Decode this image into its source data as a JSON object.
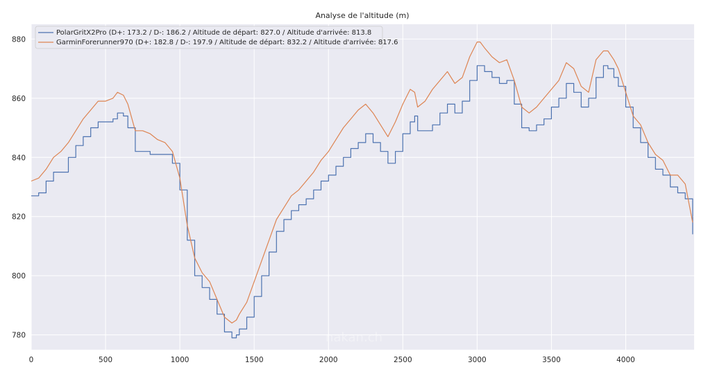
{
  "chart_data": {
    "type": "line",
    "title": "Analyse de l'altitude (m)",
    "xlabel": "",
    "ylabel": "",
    "xlim": [
      0,
      4460
    ],
    "ylim": [
      775,
      885
    ],
    "xticks": [
      0,
      500,
      1000,
      1500,
      2000,
      2500,
      3000,
      3500,
      4000
    ],
    "yticks": [
      780,
      800,
      820,
      840,
      860,
      880
    ],
    "grid": true,
    "legend_position": "top-left",
    "background": "#eaeaf2",
    "watermark": "nakan.ch",
    "series": [
      {
        "name": "PolarGritX2Pro (D+: 173.2 / D-: 186.2 / Altitude de départ: 827.0 / Altitude d'arrivée: 813.8",
        "color": "#4c72b0",
        "step": true,
        "x": [
          0,
          50,
          100,
          150,
          200,
          250,
          300,
          350,
          400,
          450,
          500,
          550,
          580,
          620,
          650,
          700,
          750,
          800,
          850,
          900,
          950,
          1000,
          1050,
          1100,
          1150,
          1200,
          1250,
          1300,
          1350,
          1380,
          1400,
          1450,
          1500,
          1550,
          1600,
          1650,
          1700,
          1750,
          1800,
          1850,
          1900,
          1950,
          2000,
          2050,
          2100,
          2150,
          2200,
          2250,
          2300,
          2350,
          2400,
          2450,
          2500,
          2550,
          2580,
          2600,
          2650,
          2700,
          2750,
          2800,
          2850,
          2900,
          2950,
          3000,
          3020,
          3050,
          3100,
          3150,
          3200,
          3250,
          3300,
          3350,
          3400,
          3450,
          3500,
          3550,
          3600,
          3650,
          3700,
          3750,
          3800,
          3850,
          3880,
          3920,
          3950,
          4000,
          4050,
          4100,
          4150,
          4200,
          4250,
          4300,
          4350,
          4400,
          4450
        ],
        "values": [
          827,
          828,
          832,
          835,
          835,
          840,
          844,
          847,
          850,
          852,
          852,
          853,
          855,
          854,
          850,
          842,
          842,
          841,
          841,
          841,
          838,
          829,
          812,
          800,
          796,
          792,
          787,
          781,
          779,
          780,
          782,
          786,
          793,
          800,
          808,
          815,
          819,
          822,
          824,
          826,
          829,
          832,
          834,
          837,
          840,
          843,
          845,
          848,
          845,
          842,
          838,
          842,
          848,
          852,
          854,
          849,
          849,
          851,
          855,
          858,
          855,
          859,
          866,
          871,
          871,
          869,
          867,
          865,
          866,
          858,
          850,
          849,
          851,
          853,
          857,
          860,
          865,
          862,
          857,
          860,
          867,
          871,
          870,
          867,
          864,
          857,
          850,
          845,
          840,
          836,
          834,
          830,
          828,
          826,
          814
        ]
      },
      {
        "name": "GarminForerunner970 (D+: 182.8 / D-: 197.9 / Altitude de départ: 832.2 / Altitude d'arrivée: 817.6",
        "color": "#dd8452",
        "step": false,
        "x": [
          0,
          50,
          100,
          150,
          200,
          250,
          300,
          350,
          400,
          450,
          500,
          550,
          580,
          620,
          650,
          700,
          750,
          800,
          850,
          900,
          950,
          1000,
          1050,
          1100,
          1150,
          1200,
          1250,
          1300,
          1350,
          1380,
          1400,
          1450,
          1500,
          1550,
          1600,
          1650,
          1700,
          1750,
          1800,
          1850,
          1900,
          1950,
          2000,
          2050,
          2100,
          2150,
          2200,
          2250,
          2300,
          2350,
          2400,
          2450,
          2500,
          2550,
          2580,
          2600,
          2650,
          2700,
          2750,
          2800,
          2850,
          2900,
          2950,
          3000,
          3020,
          3050,
          3100,
          3150,
          3200,
          3250,
          3300,
          3350,
          3400,
          3450,
          3500,
          3550,
          3600,
          3650,
          3700,
          3750,
          3800,
          3850,
          3880,
          3920,
          3950,
          4000,
          4050,
          4100,
          4150,
          4200,
          4250,
          4300,
          4350,
          4400,
          4450
        ],
        "values": [
          832,
          833,
          836,
          840,
          842,
          845,
          849,
          853,
          856,
          859,
          859,
          860,
          862,
          861,
          858,
          849,
          849,
          848,
          846,
          845,
          842,
          833,
          817,
          806,
          801,
          798,
          792,
          786,
          784,
          785,
          787,
          791,
          798,
          805,
          812,
          819,
          823,
          827,
          829,
          832,
          835,
          839,
          842,
          846,
          850,
          853,
          856,
          858,
          855,
          851,
          847,
          852,
          858,
          863,
          862,
          857,
          859,
          863,
          866,
          869,
          865,
          867,
          874,
          879,
          879,
          877,
          874,
          872,
          873,
          866,
          857,
          855,
          857,
          860,
          863,
          866,
          872,
          870,
          864,
          862,
          873,
          876,
          876,
          873,
          870,
          862,
          854,
          851,
          845,
          841,
          839,
          834,
          834,
          831,
          818
        ]
      }
    ]
  }
}
